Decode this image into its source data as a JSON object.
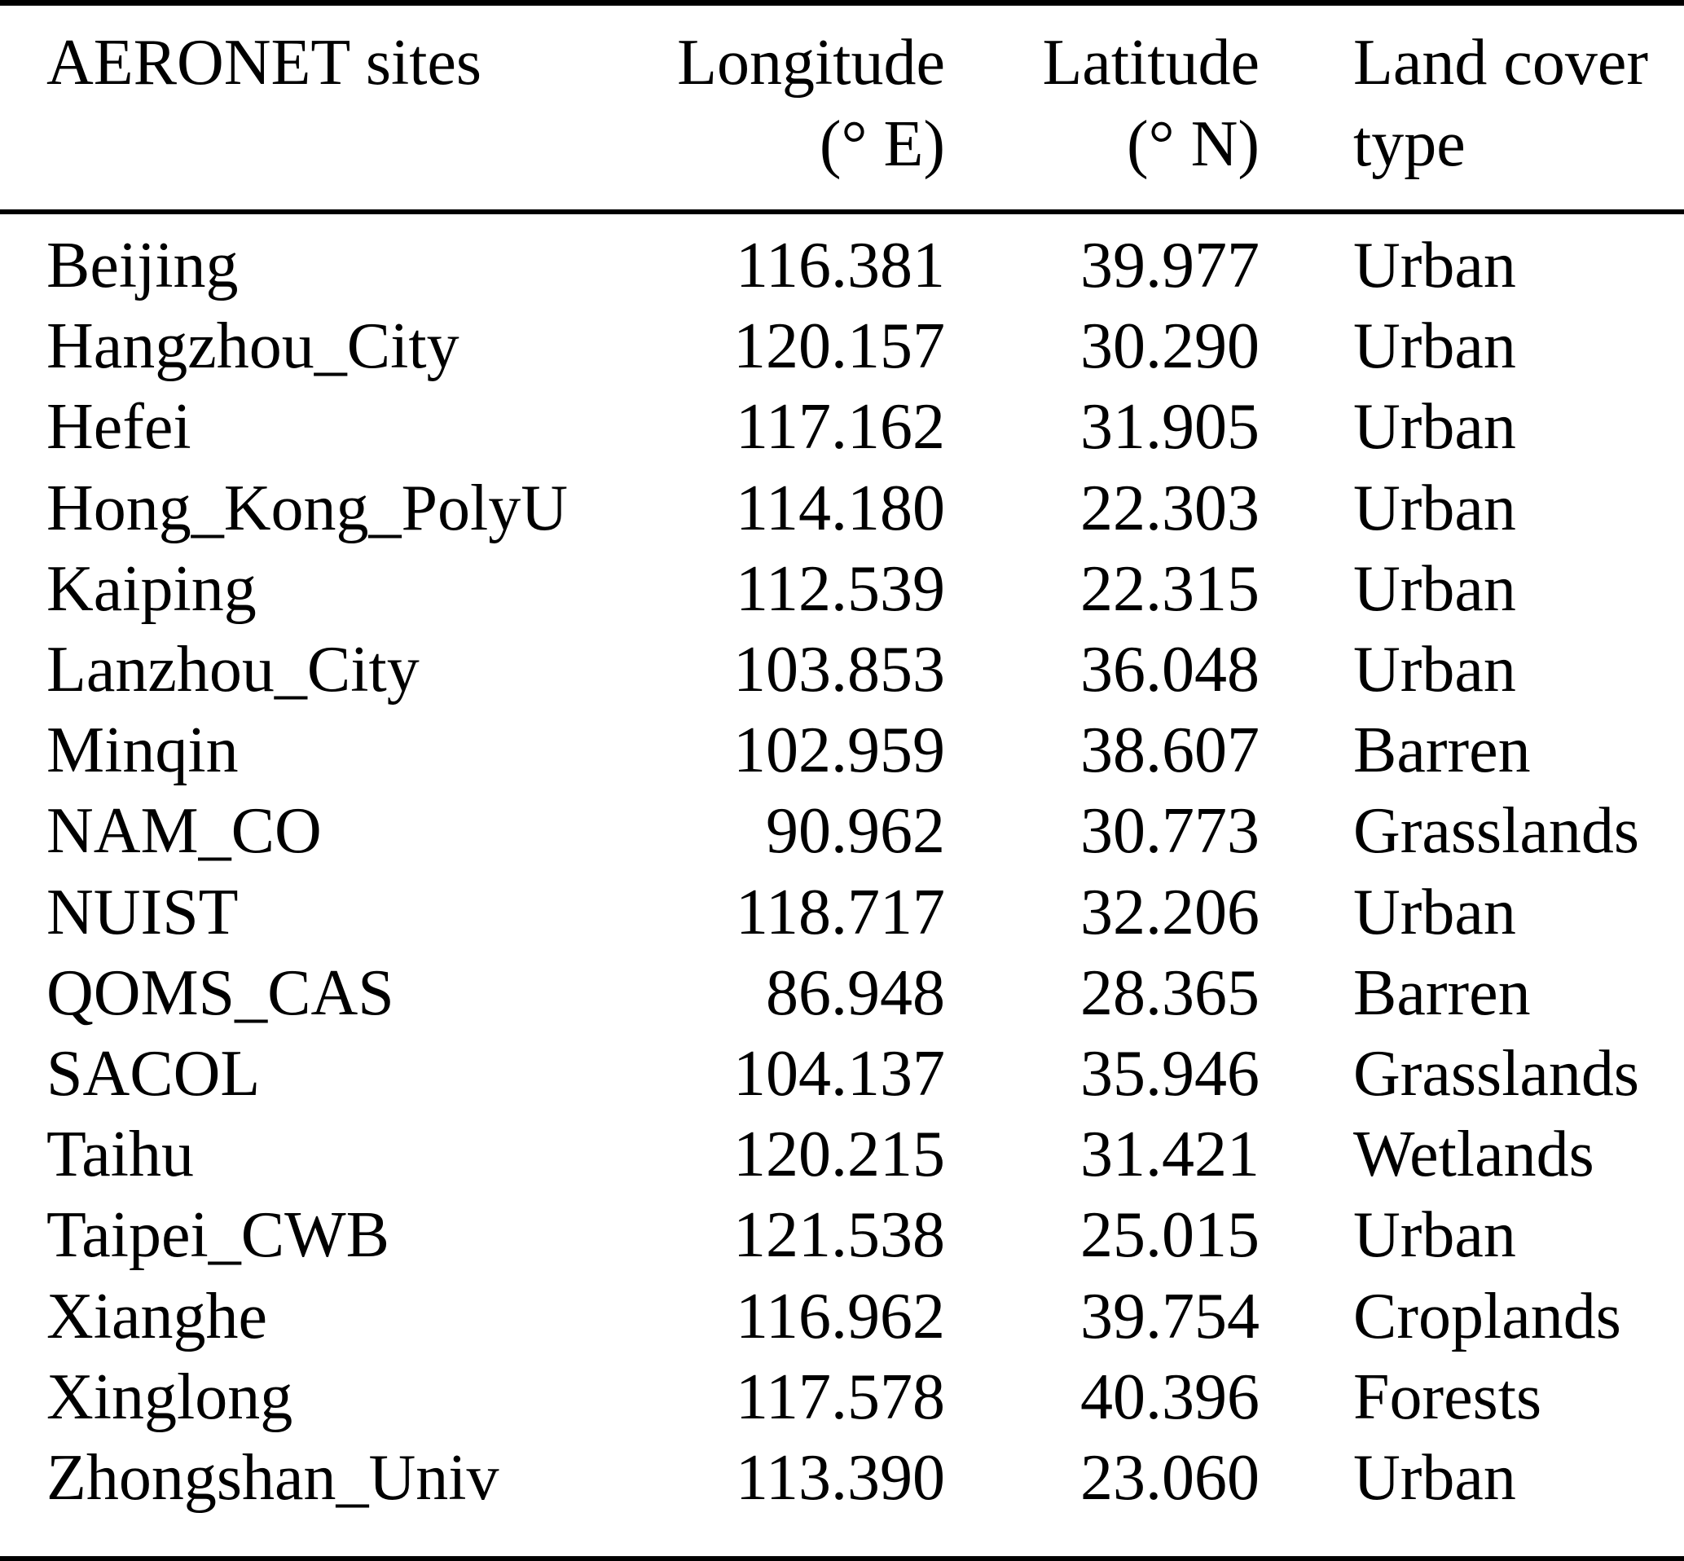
{
  "table": {
    "title": "AERONET sites table",
    "rule_color": "#000000",
    "header": {
      "site": {
        "line1": "AERONET sites",
        "line2": ""
      },
      "longitude": {
        "line1": "Longitude",
        "line2": "(° E)"
      },
      "latitude": {
        "line1": "Latitude",
        "line2": "(° N)"
      },
      "land_cover": {
        "line1": "Land cover",
        "line2": "type"
      }
    },
    "rows": [
      {
        "site": "Beijing",
        "lon": "116.381",
        "lat": "39.977",
        "cover": "Urban"
      },
      {
        "site": "Hangzhou_City",
        "lon": "120.157",
        "lat": "30.290",
        "cover": "Urban"
      },
      {
        "site": "Hefei",
        "lon": "117.162",
        "lat": "31.905",
        "cover": "Urban"
      },
      {
        "site": "Hong_Kong_PolyU",
        "lon": "114.180",
        "lat": "22.303",
        "cover": "Urban"
      },
      {
        "site": "Kaiping",
        "lon": "112.539",
        "lat": "22.315",
        "cover": "Urban"
      },
      {
        "site": "Lanzhou_City",
        "lon": "103.853",
        "lat": "36.048",
        "cover": "Urban"
      },
      {
        "site": "Minqin",
        "lon": "102.959",
        "lat": "38.607",
        "cover": "Barren"
      },
      {
        "site": "NAM_CO",
        "lon": "90.962",
        "lat": "30.773",
        "cover": "Grasslands"
      },
      {
        "site": "NUIST",
        "lon": "118.717",
        "lat": "32.206",
        "cover": "Urban"
      },
      {
        "site": "QOMS_CAS",
        "lon": "86.948",
        "lat": "28.365",
        "cover": "Barren"
      },
      {
        "site": "SACOL",
        "lon": "104.137",
        "lat": "35.946",
        "cover": "Grasslands"
      },
      {
        "site": "Taihu",
        "lon": "120.215",
        "lat": "31.421",
        "cover": "Wetlands"
      },
      {
        "site": "Taipei_CWB",
        "lon": "121.538",
        "lat": "25.015",
        "cover": "Urban"
      },
      {
        "site": "Xianghe",
        "lon": "116.962",
        "lat": "39.754",
        "cover": "Croplands"
      },
      {
        "site": "Xinglong",
        "lon": "117.578",
        "lat": "40.396",
        "cover": "Forests"
      },
      {
        "site": "Zhongshan_Univ",
        "lon": "113.390",
        "lat": "23.060",
        "cover": "Urban"
      }
    ]
  }
}
